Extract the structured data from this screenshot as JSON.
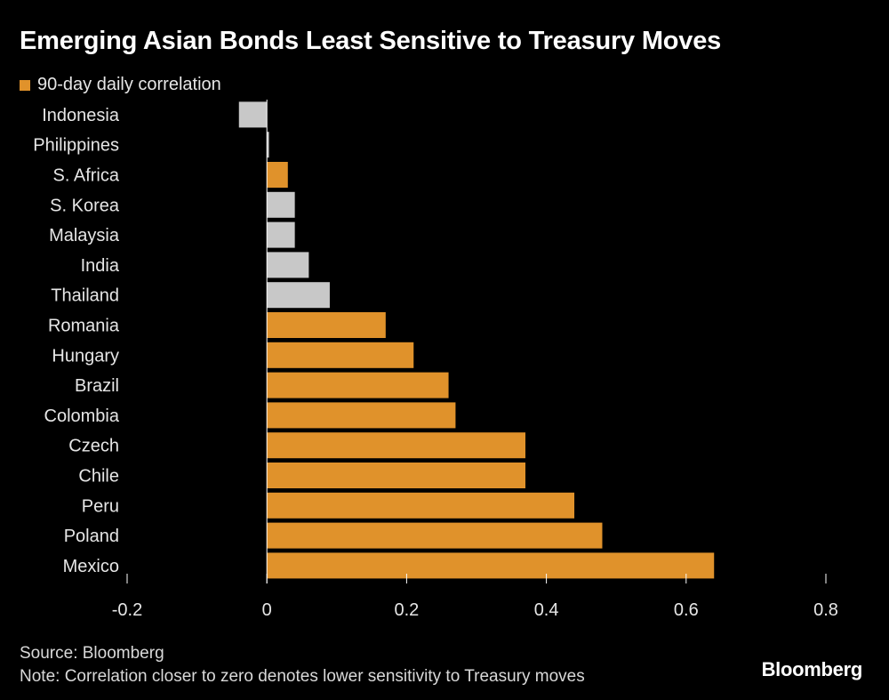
{
  "chart_data": {
    "type": "bar",
    "orientation": "horizontal",
    "title": "Emerging Asian Bonds Least Sensitive to Treasury Moves",
    "legend": [
      {
        "label": "90-day daily correlation",
        "color": "#e0922b"
      }
    ],
    "categories": [
      "Indonesia",
      "Philippines",
      "S. Africa",
      "S. Korea",
      "Malaysia",
      "India",
      "Thailand",
      "Romania",
      "Hungary",
      "Brazil",
      "Colombia",
      "Czech",
      "Chile",
      "Peru",
      "Poland",
      "Mexico"
    ],
    "values": [
      -0.04,
      0.003,
      0.03,
      0.04,
      0.04,
      0.06,
      0.09,
      0.17,
      0.21,
      0.26,
      0.27,
      0.37,
      0.37,
      0.44,
      0.48,
      0.64
    ],
    "highlight": [
      false,
      false,
      true,
      false,
      false,
      false,
      false,
      true,
      true,
      true,
      true,
      true,
      true,
      true,
      true,
      true
    ],
    "xlim": [
      -0.2,
      0.8
    ],
    "xticks": [
      -0.2,
      0,
      0.2,
      0.4,
      0.6,
      0.8
    ],
    "xtick_labels": [
      "-0.2",
      "0",
      "0.2",
      "0.4",
      "0.6",
      "0.8"
    ],
    "xlabel": "",
    "ylabel": "",
    "source": "Source: Bloomberg",
    "note": "Note: Correlation closer to zero denotes lower sensitivity to Treasury moves"
  },
  "colors": {
    "highlight": "#e0922b",
    "asia": "#c8c8c8",
    "axis": "#ffffff",
    "background": "#000000"
  },
  "brand": "Bloomberg"
}
